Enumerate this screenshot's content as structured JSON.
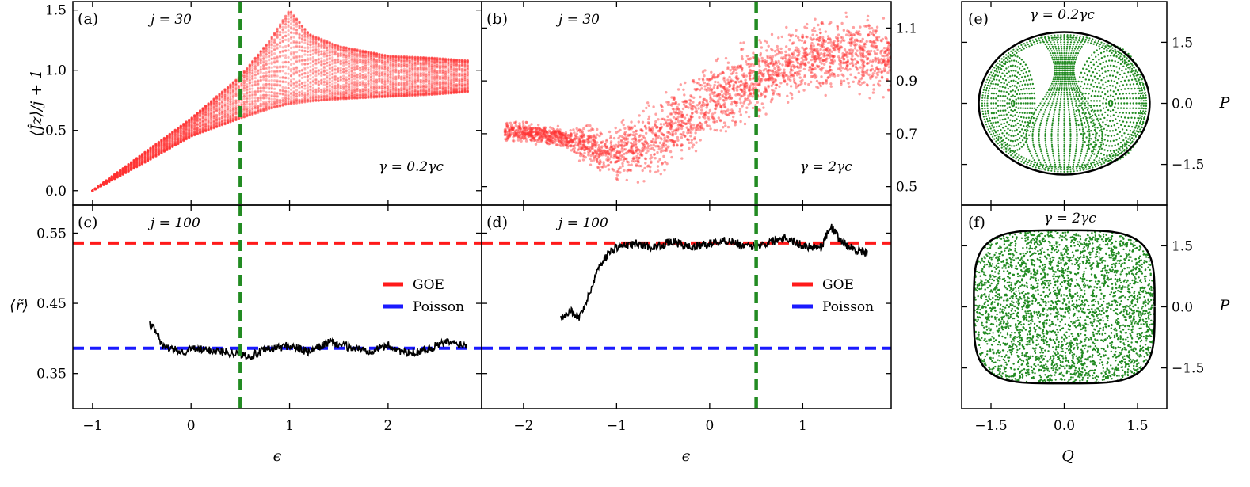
{
  "chart_data": [
    {
      "panel": "(a)",
      "type": "scatter",
      "annotation_j": "j = 30",
      "annotation_gamma": "γ = 0.2γc",
      "ylabel": "⟨Ĵz⟩/j + 1",
      "xlabel": "",
      "xlim": [
        -1.2,
        2.95
      ],
      "ylim": [
        -0.12,
        1.57
      ],
      "yticks": [
        0.0,
        0.5,
        1.0,
        1.5
      ],
      "ytick_labels": [
        "0.0",
        "0.5",
        "1.0",
        "1.5"
      ],
      "xticks": [
        -1,
        0,
        1,
        2
      ],
      "xtick_labels": [
        "",
        "",
        "",
        ""
      ],
      "vline_x": 0.5,
      "series": [
        {
          "name": "band_upper",
          "x": [
            -1.0,
            -0.5,
            0.0,
            0.5,
            0.8,
            1.0,
            1.2,
            1.5,
            2.0,
            2.5,
            2.8
          ],
          "values": [
            0.0,
            0.3,
            0.6,
            0.95,
            1.25,
            1.5,
            1.3,
            1.2,
            1.12,
            1.1,
            1.08
          ]
        },
        {
          "name": "band_lower",
          "x": [
            -1.0,
            -0.5,
            0.0,
            0.5,
            0.8,
            1.0,
            1.2,
            1.5,
            2.0,
            2.5,
            2.8
          ],
          "values": [
            0.0,
            0.22,
            0.45,
            0.6,
            0.68,
            0.72,
            0.74,
            0.76,
            0.78,
            0.8,
            0.82
          ]
        }
      ]
    },
    {
      "panel": "(b)",
      "type": "scatter",
      "annotation_j": "j = 30",
      "annotation_gamma": "γ = 2γc",
      "xlabel": "",
      "xlim": [
        -2.45,
        1.95
      ],
      "ylim": [
        0.43,
        1.2
      ],
      "yticks": [
        0.5,
        0.7,
        0.9,
        1.1
      ],
      "ytick_labels": [
        "0.5",
        "0.7",
        "0.9",
        "1.1"
      ],
      "xticks": [
        -2,
        -1,
        0,
        1
      ],
      "xtick_labels": [
        "",
        "",
        "",
        ""
      ],
      "vline_x": 0.5,
      "series": [
        {
          "name": "center",
          "x": [
            -2.2,
            -1.8,
            -1.4,
            -1.1,
            -0.8,
            -0.5,
            -0.2,
            0.1,
            0.4,
            0.7,
            1.0,
            1.3,
            1.6,
            1.9
          ],
          "values": [
            0.71,
            0.7,
            0.67,
            0.62,
            0.64,
            0.7,
            0.77,
            0.84,
            0.89,
            0.94,
            0.98,
            1.0,
            1.0,
            1.0
          ]
        }
      ]
    },
    {
      "panel": "(c)",
      "type": "line",
      "annotation_j": "j = 100",
      "ylabel": "⟨r̃⟩",
      "xlabel": "ϵ",
      "xlim": [
        -1.2,
        2.95
      ],
      "ylim": [
        0.3,
        0.59
      ],
      "yticks": [
        0.35,
        0.45,
        0.55
      ],
      "ytick_labels": [
        "0.35",
        "0.45",
        "0.55"
      ],
      "xticks": [
        -1,
        0,
        1,
        2
      ],
      "xtick_labels": [
        "−1",
        "0",
        "1",
        "2"
      ],
      "vline_x": 0.5,
      "goe": 0.536,
      "poisson": 0.386,
      "legend": [
        "GOE",
        "Poisson"
      ],
      "series": [
        {
          "name": "r",
          "x": [
            -0.42,
            -0.35,
            -0.3,
            -0.2,
            -0.1,
            0.0,
            0.2,
            0.4,
            0.6,
            0.8,
            1.0,
            1.2,
            1.4,
            1.6,
            1.8,
            2.0,
            2.2,
            2.4,
            2.6,
            2.8
          ],
          "values": [
            0.42,
            0.41,
            0.39,
            0.385,
            0.38,
            0.385,
            0.383,
            0.38,
            0.375,
            0.385,
            0.39,
            0.38,
            0.395,
            0.388,
            0.382,
            0.39,
            0.378,
            0.385,
            0.395,
            0.39
          ]
        }
      ]
    },
    {
      "panel": "(d)",
      "type": "line",
      "annotation_j": "j = 100",
      "xlabel": "ϵ",
      "xlim": [
        -2.45,
        1.95
      ],
      "ylim": [
        0.3,
        0.59
      ],
      "yticks": [
        0.35,
        0.45,
        0.55
      ],
      "ytick_labels": [
        "",
        "",
        ""
      ],
      "xticks": [
        -2,
        -1,
        0,
        1
      ],
      "xtick_labels": [
        "−2",
        "−1",
        "0",
        "1"
      ],
      "vline_x": 0.5,
      "goe": 0.536,
      "poisson": 0.386,
      "legend": [
        "GOE",
        "Poisson"
      ],
      "series": [
        {
          "name": "r",
          "x": [
            -1.6,
            -1.5,
            -1.4,
            -1.3,
            -1.2,
            -1.1,
            -1.0,
            -0.8,
            -0.6,
            -0.4,
            -0.2,
            0.0,
            0.2,
            0.4,
            0.6,
            0.8,
            1.0,
            1.2,
            1.3,
            1.4,
            1.5,
            1.6,
            1.7
          ],
          "values": [
            0.43,
            0.44,
            0.43,
            0.46,
            0.5,
            0.52,
            0.53,
            0.535,
            0.53,
            0.538,
            0.53,
            0.535,
            0.54,
            0.53,
            0.535,
            0.545,
            0.532,
            0.53,
            0.56,
            0.54,
            0.53,
            0.525,
            0.52
          ]
        }
      ]
    },
    {
      "panel": "(e)",
      "type": "scatter",
      "annotation_gamma": "γ = 0.2γc",
      "ylabel": "P",
      "xlabel": "",
      "xlim": [
        -2.1,
        2.1
      ],
      "ylim": [
        -2.5,
        2.5
      ],
      "xticks": [
        -1.5,
        0.0,
        1.5
      ],
      "xtick_labels": [
        "",
        "",
        ""
      ],
      "yticks": [
        -1.5,
        0.0,
        1.5
      ],
      "ytick_labels": [
        "−1.5",
        "0.0",
        "1.5"
      ],
      "boundary": {
        "rx": 1.75,
        "ry": 1.75
      },
      "fixed_points": [
        [
          -1.05,
          0.0
        ],
        [
          0.95,
          0.0
        ]
      ]
    },
    {
      "panel": "(f)",
      "type": "scatter",
      "annotation_gamma": "γ = 2γc",
      "ylabel": "P",
      "xlabel": "Q",
      "xlim": [
        -2.1,
        2.1
      ],
      "ylim": [
        -2.5,
        2.5
      ],
      "xticks": [
        -1.5,
        0.0,
        1.5
      ],
      "xtick_labels": [
        "−1.5",
        "0.0",
        "1.5"
      ],
      "yticks": [
        -1.5,
        0.0,
        1.5
      ],
      "ytick_labels": [
        "−1.5",
        "0.0",
        "1.5"
      ],
      "boundary": {
        "rx": 1.85,
        "ry": 1.88
      }
    }
  ],
  "colors": {
    "red_points": "#ff3030",
    "goe": "#ff1a1a",
    "poisson": "#1a1aff",
    "vline": "#228b22",
    "green_points": "#228b22",
    "line": "#000000"
  }
}
